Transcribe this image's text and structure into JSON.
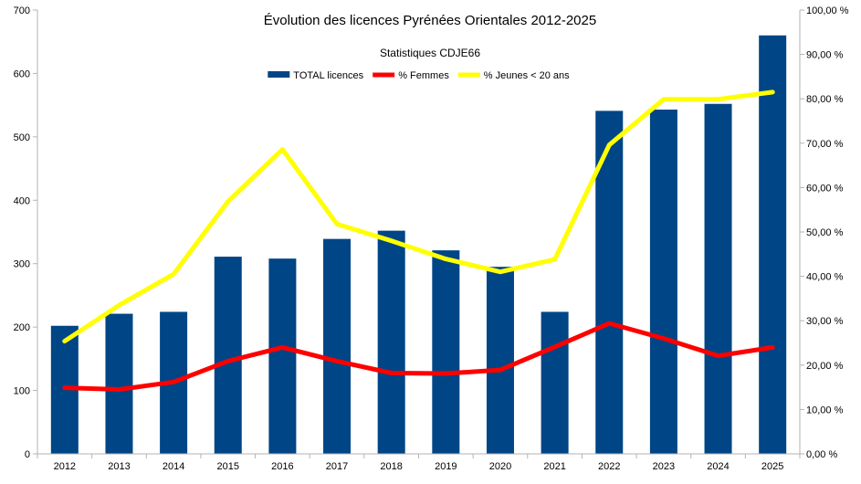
{
  "chart_data": {
    "type": "bar+line",
    "title": "Évolution des licences Pyrénées Orientales 2012-2025",
    "subtitle": "Statistiques CDJE66",
    "categories": [
      "2012",
      "2013",
      "2014",
      "2015",
      "2016",
      "2017",
      "2018",
      "2019",
      "2020",
      "2021",
      "2022",
      "2023",
      "2024",
      "2025"
    ],
    "series": [
      {
        "name": "TOTAL licences",
        "kind": "bar",
        "axis": "left",
        "color": "#004586",
        "values": [
          202,
          221,
          224,
          311,
          308,
          339,
          352,
          321,
          295,
          224,
          541,
          543,
          552,
          660
        ]
      },
      {
        "name": "% Femmes",
        "kind": "line",
        "axis": "right",
        "color": "#ff0000",
        "values": [
          14.9,
          14.5,
          16.2,
          20.9,
          24.0,
          20.9,
          18.2,
          18.1,
          18.9,
          24.1,
          29.4,
          26.0,
          22.1,
          24.0
        ]
      },
      {
        "name": "% Jeunes < 20 ans",
        "kind": "line",
        "axis": "right",
        "color": "#ffff00",
        "values": [
          25.4,
          33.5,
          40.5,
          56.9,
          68.6,
          51.8,
          48.0,
          43.9,
          41.0,
          43.8,
          69.6,
          79.9,
          79.9,
          81.5
        ]
      }
    ],
    "y_left": {
      "min": 0,
      "max": 700,
      "ticks": [
        "0",
        "100",
        "200",
        "300",
        "400",
        "500",
        "600",
        "700"
      ]
    },
    "y_right": {
      "min": 0,
      "max": 100,
      "ticks": [
        "0,00 %",
        "10,00 %",
        "20,00 %",
        "30,00 %",
        "40,00 %",
        "50,00 %",
        "60,00 %",
        "70,00 %",
        "80,00 %",
        "90,00 %",
        "100,00 %"
      ]
    },
    "grid": false,
    "legend_position": "top"
  }
}
